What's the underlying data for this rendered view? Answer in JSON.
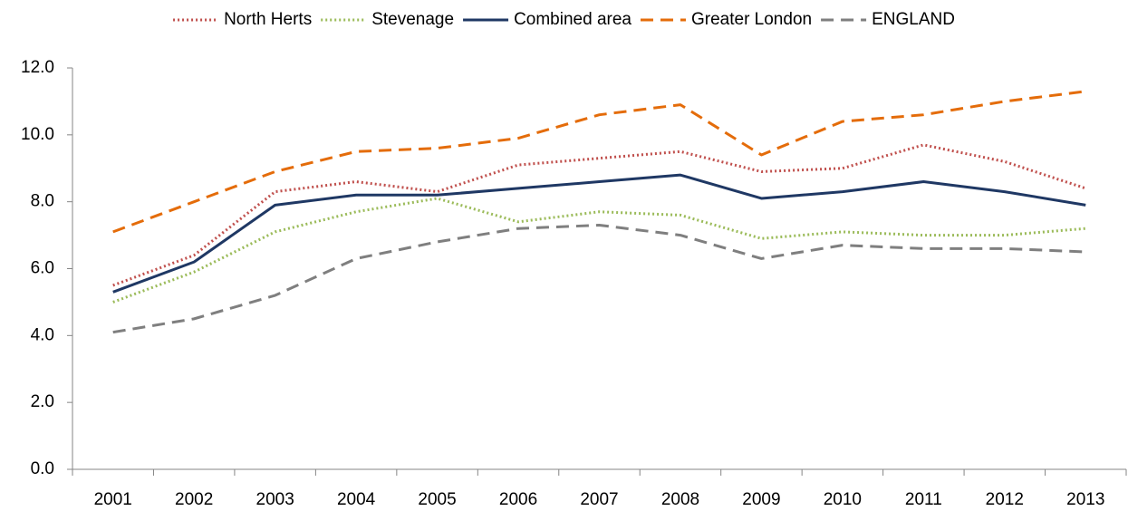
{
  "chart_data": {
    "type": "line",
    "categories": [
      "2001",
      "2002",
      "2003",
      "2004",
      "2005",
      "2006",
      "2007",
      "2008",
      "2009",
      "2010",
      "2011",
      "2012",
      "2013"
    ],
    "series": [
      {
        "name": "North Herts",
        "color": "#c0504d",
        "style": "dotted",
        "values": [
          5.5,
          6.4,
          8.3,
          8.6,
          8.3,
          9.1,
          9.3,
          9.5,
          8.9,
          9.0,
          9.7,
          9.2,
          8.4
        ]
      },
      {
        "name": "Stevenage",
        "color": "#9bbb59",
        "style": "dotted",
        "values": [
          5.0,
          5.9,
          7.1,
          7.7,
          8.1,
          7.4,
          7.7,
          7.6,
          6.9,
          7.1,
          7.0,
          7.0,
          7.2
        ]
      },
      {
        "name": "Combined area",
        "color": "#1f3864",
        "style": "solid",
        "values": [
          5.3,
          6.2,
          7.9,
          8.2,
          8.2,
          8.4,
          8.6,
          8.8,
          8.1,
          8.3,
          8.6,
          8.3,
          7.9
        ]
      },
      {
        "name": "Greater London",
        "color": "#e46c0a",
        "style": "dashed",
        "values": [
          7.1,
          8.0,
          8.9,
          9.5,
          9.6,
          9.9,
          10.6,
          10.9,
          9.4,
          10.4,
          10.6,
          11.0,
          11.3
        ]
      },
      {
        "name": "ENGLAND",
        "color": "#7f7f7f",
        "style": "dashed",
        "values": [
          4.1,
          4.5,
          5.2,
          6.3,
          6.8,
          7.2,
          7.3,
          7.0,
          6.3,
          6.7,
          6.6,
          6.6,
          6.5
        ]
      }
    ],
    "ylim": [
      0,
      12
    ],
    "yticks": [
      {
        "value": 0,
        "label": "0.0"
      },
      {
        "value": 2,
        "label": "2.0"
      },
      {
        "value": 4,
        "label": "4.0"
      },
      {
        "value": 6,
        "label": "6.0"
      },
      {
        "value": 8,
        "label": "8.0"
      },
      {
        "value": 10,
        "label": "10.0"
      },
      {
        "value": 12,
        "label": "12.0"
      }
    ],
    "grid": false,
    "legend": "top"
  }
}
